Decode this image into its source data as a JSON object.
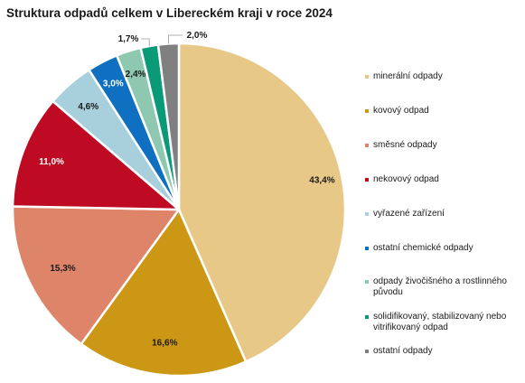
{
  "chart_data": {
    "type": "pie",
    "title": "Struktura odpadů celkem v Libereckém kraji v roce 2024",
    "slices": [
      {
        "label": "minerální odpady",
        "value": 43.4,
        "value_label": "43,4%",
        "color": "#e8c886",
        "label_color": "#1a1a1a"
      },
      {
        "label": "kovový odpad",
        "value": 16.6,
        "value_label": "16,6%",
        "color": "#cc9714",
        "label_color": "#1a1a1a"
      },
      {
        "label": "směsné odpady",
        "value": 15.3,
        "value_label": "15,3%",
        "color": "#de8468",
        "label_color": "#1a1a1a"
      },
      {
        "label": "nekovový odpad",
        "value": 11.0,
        "value_label": "11,0%",
        "color": "#be0a22",
        "label_color": "#ffffff"
      },
      {
        "label": "vyřazené zařízení",
        "value": 4.6,
        "value_label": "4,6%",
        "color": "#a8cfdc",
        "label_color": "#1a1a1a"
      },
      {
        "label": "ostatní chemické odpady",
        "value": 3.0,
        "value_label": "3,0%",
        "color": "#0f6fc0",
        "label_color": "#ffffff"
      },
      {
        "label": "odpady živočišného a rostlinného původu",
        "value": 2.4,
        "value_label": "2,4%",
        "color": "#8ec8b0",
        "label_color": "#1a1a1a"
      },
      {
        "label": "solidifikovaný, stabilizovaný nebo vitrifikovaný odpad",
        "value": 1.7,
        "value_label": "1,7%",
        "color": "#0a9a78",
        "label_color": "#1a1a1a"
      },
      {
        "label": "ostatní odpady",
        "value": 2.0,
        "value_label": "2,0%",
        "color": "#808080",
        "label_color": "#1a1a1a"
      }
    ],
    "legend_position": "right"
  }
}
